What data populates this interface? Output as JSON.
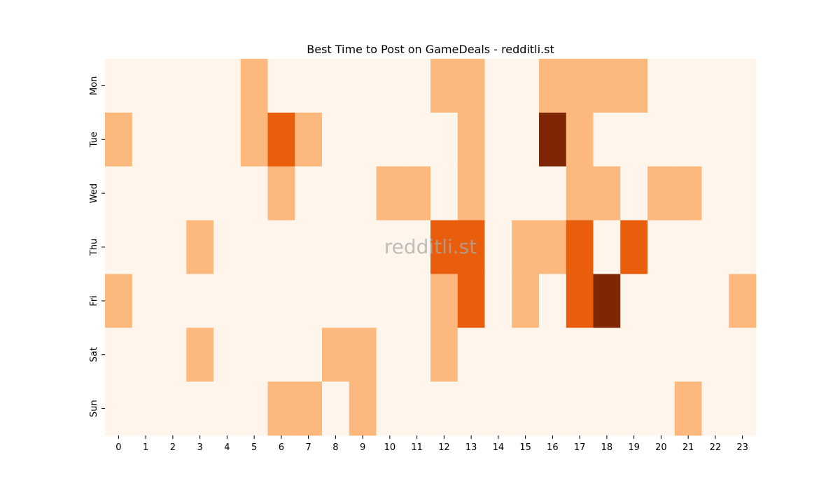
{
  "chart_data": {
    "type": "heatmap",
    "title": "Best Time to Post on GameDeals - redditli.st",
    "watermark": "redditli.st",
    "xlabel": "",
    "ylabel": "",
    "x": [
      0,
      1,
      2,
      3,
      4,
      5,
      6,
      7,
      8,
      9,
      10,
      11,
      12,
      13,
      14,
      15,
      16,
      17,
      18,
      19,
      20,
      21,
      22,
      23
    ],
    "y": [
      "Mon",
      "Tue",
      "Wed",
      "Thu",
      "Fri",
      "Sat",
      "Sun"
    ],
    "values": [
      [
        0,
        0,
        0,
        0,
        0,
        1,
        0,
        0,
        0,
        0,
        0,
        0,
        1,
        1,
        0,
        0,
        1,
        1,
        1,
        1,
        0,
        0,
        0,
        0
      ],
      [
        1,
        0,
        0,
        0,
        0,
        1,
        2,
        1,
        0,
        0,
        0,
        0,
        0,
        1,
        0,
        0,
        3,
        1,
        0,
        0,
        0,
        0,
        0,
        0
      ],
      [
        0,
        0,
        0,
        0,
        0,
        0,
        1,
        0,
        0,
        0,
        1,
        1,
        0,
        1,
        0,
        0,
        0,
        1,
        1,
        0,
        1,
        1,
        0,
        0
      ],
      [
        0,
        0,
        0,
        1,
        0,
        0,
        0,
        0,
        0,
        0,
        0,
        0,
        2,
        2,
        0,
        1,
        1,
        2,
        0,
        2,
        0,
        0,
        0,
        0
      ],
      [
        1,
        0,
        0,
        0,
        0,
        0,
        0,
        0,
        0,
        0,
        0,
        0,
        1,
        2,
        0,
        1,
        0,
        2,
        3,
        0,
        0,
        0,
        0,
        1
      ],
      [
        0,
        0,
        0,
        1,
        0,
        0,
        0,
        0,
        1,
        1,
        0,
        0,
        1,
        0,
        0,
        0,
        0,
        0,
        0,
        0,
        0,
        0,
        0,
        0
      ],
      [
        0,
        0,
        0,
        0,
        0,
        0,
        1,
        1,
        0,
        1,
        0,
        0,
        0,
        0,
        0,
        0,
        0,
        0,
        0,
        0,
        0,
        1,
        0,
        0
      ]
    ],
    "colorscale": [
      "#fff5eb",
      "#fdb97d",
      "#e95e0d",
      "#7f2704"
    ],
    "grid": false,
    "legend": "none"
  }
}
